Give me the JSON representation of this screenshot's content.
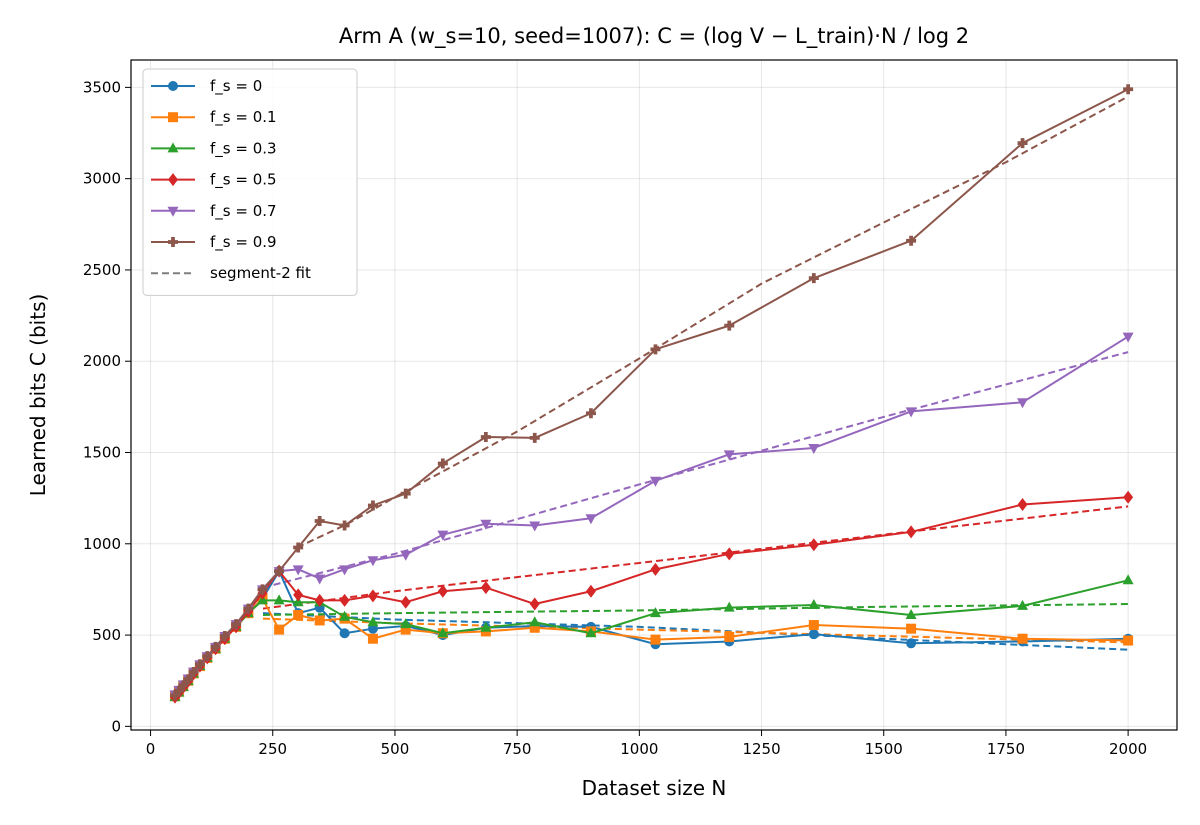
{
  "chart_data": {
    "type": "line",
    "title": "Arm A (w_s=10, seed=1007): C = (log V − L_train)·N / log 2",
    "xlabel": "Dataset size N",
    "ylabel": "Learned bits C (bits)",
    "xlim": [
      -40,
      2100
    ],
    "ylim": [
      -20,
      3650
    ],
    "xticks": [
      0,
      250,
      500,
      750,
      1000,
      1250,
      1500,
      1750,
      2000
    ],
    "yticks": [
      0,
      500,
      1000,
      1500,
      2000,
      2500,
      3000,
      3500
    ],
    "grid": true,
    "legend_position": "top-left",
    "x": [
      50,
      58,
      67,
      77,
      88,
      101,
      116,
      133,
      152,
      175,
      200,
      229,
      263,
      302,
      346,
      397,
      455,
      522,
      598,
      686,
      786,
      901,
      1033,
      1184,
      1357,
      1556,
      1784,
      2000
    ],
    "series": [
      {
        "name": "f_s = 0",
        "color": "#1f77b4",
        "marker": "circle",
        "values": [
          165,
          190,
          220,
          250,
          290,
          330,
          375,
          425,
          480,
          545,
          620,
          700,
          850,
          620,
          650,
          510,
          535,
          550,
          500,
          540,
          550,
          545,
          450,
          465,
          505,
          455,
          465,
          480
        ],
        "fit": [
          [
            230,
            620
          ],
          [
            500,
            585
          ],
          [
            1000,
            545
          ],
          [
            1500,
            480
          ],
          [
            2000,
            420
          ]
        ]
      },
      {
        "name": "f_s = 0.1",
        "color": "#ff7f0e",
        "marker": "square",
        "values": [
          165,
          190,
          220,
          250,
          290,
          330,
          375,
          425,
          480,
          545,
          620,
          700,
          530,
          610,
          580,
          590,
          480,
          530,
          510,
          520,
          540,
          520,
          475,
          490,
          555,
          535,
          480,
          470
        ],
        "fit": [
          [
            230,
            590
          ],
          [
            500,
            565
          ],
          [
            1000,
            530
          ],
          [
            1500,
            495
          ],
          [
            2000,
            460
          ]
        ]
      },
      {
        "name": "f_s = 0.3",
        "color": "#2ca02c",
        "marker": "triangle-up",
        "values": [
          160,
          185,
          215,
          248,
          288,
          330,
          375,
          425,
          480,
          545,
          620,
          690,
          690,
          680,
          680,
          600,
          570,
          560,
          510,
          540,
          570,
          510,
          620,
          650,
          665,
          610,
          660,
          800
        ],
        "fit": [
          [
            230,
            610
          ],
          [
            500,
            620
          ],
          [
            1000,
            635
          ],
          [
            1500,
            655
          ],
          [
            2000,
            670
          ]
        ]
      },
      {
        "name": "f_s = 0.5",
        "color": "#d62728",
        "marker": "diamond",
        "values": [
          160,
          185,
          215,
          248,
          288,
          330,
          375,
          425,
          480,
          545,
          630,
          730,
          850,
          720,
          690,
          690,
          715,
          680,
          740,
          760,
          670,
          740,
          860,
          945,
          995,
          1065,
          1215,
          1255
        ],
        "fit": [
          [
            230,
            645
          ],
          [
            500,
            740
          ],
          [
            1000,
            895
          ],
          [
            1500,
            1050
          ],
          [
            2000,
            1205
          ]
        ]
      },
      {
        "name": "f_s = 0.7",
        "color": "#9467bd",
        "marker": "triangle-down",
        "values": [
          175,
          200,
          230,
          262,
          300,
          340,
          385,
          435,
          495,
          560,
          645,
          750,
          850,
          860,
          810,
          860,
          910,
          940,
          1050,
          1110,
          1100,
          1140,
          1345,
          1490,
          1525,
          1725,
          1775,
          2135
        ],
        "fit": [
          [
            230,
            760
          ],
          [
            500,
            945
          ],
          [
            1000,
            1325
          ],
          [
            1500,
            1695
          ],
          [
            2000,
            2050
          ]
        ]
      },
      {
        "name": "f_s = 0.9",
        "color": "#8c564b",
        "marker": "plus",
        "values": [
          170,
          195,
          225,
          258,
          298,
          340,
          385,
          435,
          495,
          560,
          645,
          750,
          850,
          980,
          1125,
          1100,
          1210,
          1275,
          1440,
          1585,
          1580,
          1715,
          2065,
          2195,
          2455,
          2660,
          3195,
          3490
        ],
        "fit": [
          [
            300,
            980
          ],
          [
            400,
            1105
          ],
          [
            500,
            1255
          ],
          [
            750,
            1615
          ],
          [
            1000,
            2015
          ],
          [
            1250,
            2425
          ],
          [
            1500,
            2760
          ],
          [
            1750,
            3090
          ],
          [
            2000,
            3450
          ]
        ]
      }
    ],
    "fit_label": "segment-2 fit"
  }
}
